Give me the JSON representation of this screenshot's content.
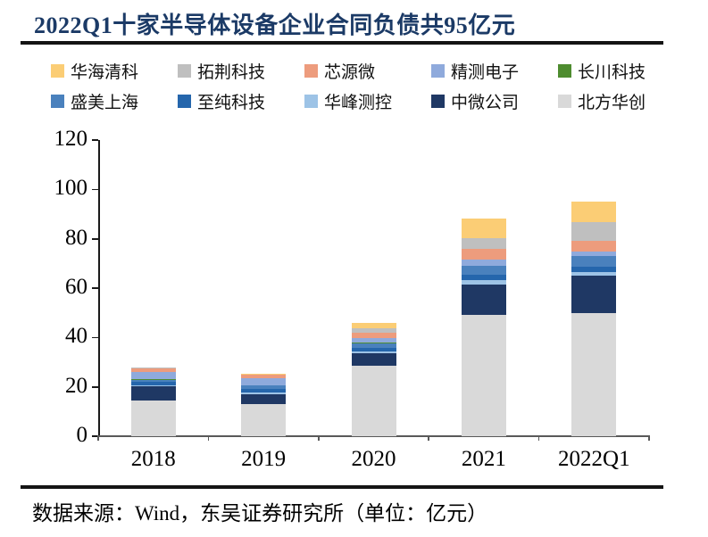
{
  "title": "2022Q1十家半导体设备企业合同负债共95亿元",
  "footer": "数据来源：Wind，东吴证券研究所（单位：亿元）",
  "chart_data": {
    "type": "bar",
    "stacked": true,
    "title": "2022Q1十家半导体设备企业合同负债共95亿元",
    "unit": "亿元",
    "categories": [
      "2018",
      "2019",
      "2020",
      "2021",
      "2022Q1"
    ],
    "yticks": [
      0,
      20,
      40,
      60,
      80,
      100,
      120
    ],
    "ylim": [
      0,
      120
    ],
    "legend_position": "top",
    "grid": false,
    "stack_order": "reverse of series list (last series at bottom of stack)",
    "series": [
      {
        "name": "华海清科",
        "color": "#FBCD75",
        "values": [
          0.2,
          0.5,
          2.3,
          7.9,
          8.3
        ]
      },
      {
        "name": "拓荆科技",
        "color": "#BFBFBF",
        "values": [
          0.3,
          0.2,
          1.8,
          4.4,
          7.5
        ]
      },
      {
        "name": "芯源微",
        "color": "#ED9C7D",
        "values": [
          1.2,
          1.3,
          2.0,
          4.2,
          4.4
        ]
      },
      {
        "name": "精测电子",
        "color": "#8FAADC",
        "values": [
          3.2,
          2.9,
          1.9,
          2.4,
          1.6
        ]
      },
      {
        "name": "长川科技",
        "color": "#4E8C2F",
        "values": [
          0.1,
          0.1,
          0.2,
          0.3,
          0.3
        ]
      },
      {
        "name": "盛美上海",
        "color": "#4A81BD",
        "values": [
          1.0,
          1.5,
          2.0,
          3.4,
          4.1
        ]
      },
      {
        "name": "至纯科技",
        "color": "#2566AC",
        "values": [
          1.3,
          1.4,
          1.5,
          2.4,
          2.4
        ]
      },
      {
        "name": "华峰测控",
        "color": "#9DC3E6",
        "values": [
          0.3,
          0.5,
          0.5,
          1.7,
          1.2
        ]
      },
      {
        "name": "中微公司",
        "color": "#1F3864",
        "values": [
          5.8,
          4.0,
          5.0,
          12.4,
          15.4
        ]
      },
      {
        "name": "北方华创",
        "color": "#D9D9D9",
        "values": [
          14.5,
          13.1,
          28.7,
          49.0,
          49.8
        ]
      }
    ],
    "approx_totals": [
      28,
      25,
      46,
      88,
      95
    ]
  },
  "colors": {
    "title_text": "#1B3A66",
    "axis": "#1a1a1a",
    "x_axis": "#595959",
    "separator": "#141414"
  }
}
